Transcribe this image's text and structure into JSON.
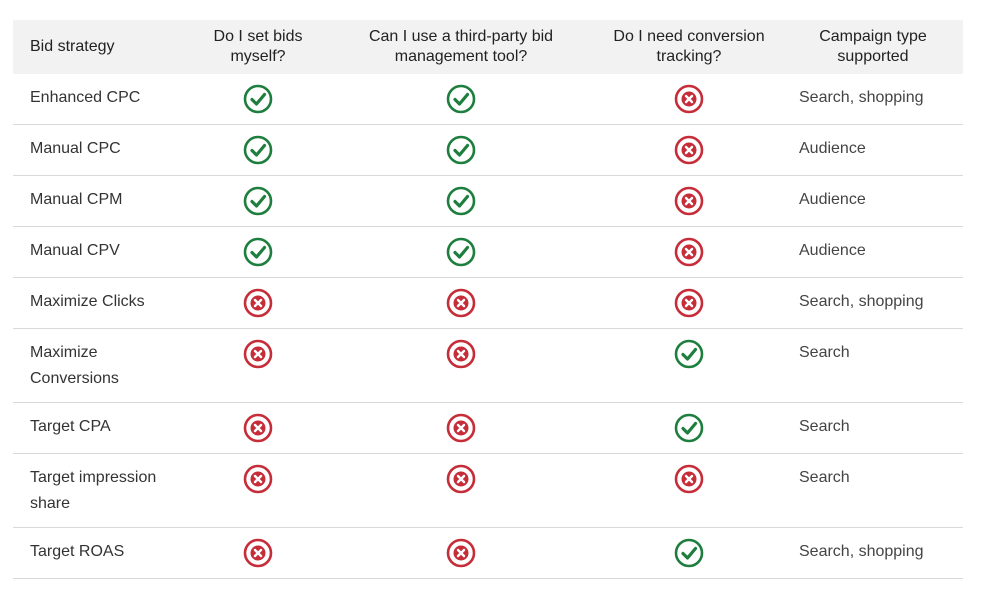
{
  "colors": {
    "check": "#1e7e3e",
    "cross": "#c62d38",
    "header_bg": "#f2f2f2",
    "row_border": "#d9d9d9"
  },
  "table": {
    "headers": [
      "Bid strategy",
      "Do I set bids myself?",
      "Can I use a third-party bid management tool?",
      "Do I need conversion tracking?",
      "Campaign type supported"
    ],
    "rows": [
      {
        "strategy": "Enhanced CPC",
        "set_bids": "check-icon",
        "third_party": "check-icon",
        "conversion_tracking": "cross-icon",
        "campaign_type": "Search, shopping"
      },
      {
        "strategy": "Manual CPC",
        "set_bids": "check-icon",
        "third_party": "check-icon",
        "conversion_tracking": "cross-icon",
        "campaign_type": "Audience"
      },
      {
        "strategy": "Manual CPM",
        "set_bids": "check-icon",
        "third_party": "check-icon",
        "conversion_tracking": "cross-icon",
        "campaign_type": "Audience"
      },
      {
        "strategy": "Manual CPV",
        "set_bids": "check-icon",
        "third_party": "check-icon",
        "conversion_tracking": "cross-icon",
        "campaign_type": "Audience"
      },
      {
        "strategy": "Maximize Clicks",
        "set_bids": "cross-icon",
        "third_party": "cross-icon",
        "conversion_tracking": "cross-icon",
        "campaign_type": "Search, shopping"
      },
      {
        "strategy": "Maximize Conversions",
        "set_bids": "cross-icon",
        "third_party": "cross-icon",
        "conversion_tracking": "check-icon",
        "campaign_type": "Search"
      },
      {
        "strategy": "Target CPA",
        "set_bids": "cross-icon",
        "third_party": "cross-icon",
        "conversion_tracking": "check-icon",
        "campaign_type": "Search"
      },
      {
        "strategy": "Target impression share",
        "set_bids": "cross-icon",
        "third_party": "cross-icon",
        "conversion_tracking": "cross-icon",
        "campaign_type": "Search"
      },
      {
        "strategy": "Target ROAS",
        "set_bids": "cross-icon",
        "third_party": "cross-icon",
        "conversion_tracking": "check-icon",
        "campaign_type": "Search, shopping"
      }
    ]
  }
}
